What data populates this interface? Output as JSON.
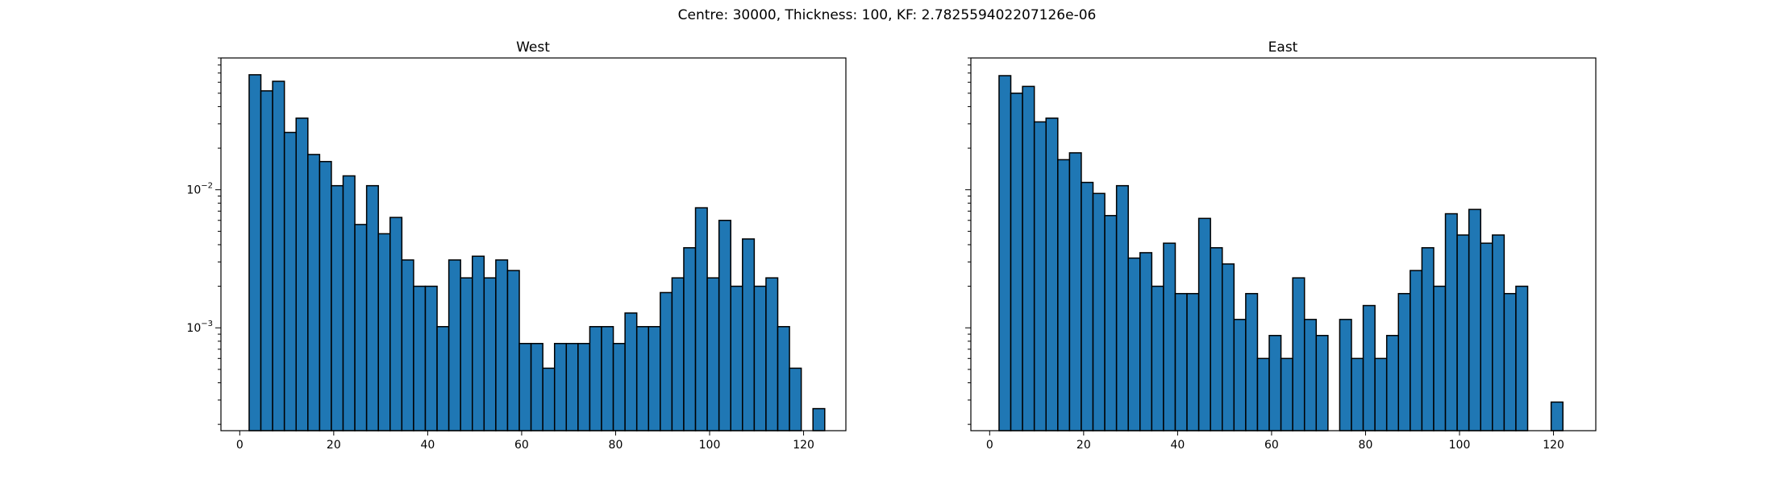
{
  "figure": {
    "suptitle": "Centre: 30000, Thickness: 100, KF: 2.782559402207126e-06"
  },
  "chart_data": [
    {
      "type": "bar",
      "title": "West",
      "xlabel": "",
      "ylabel": "",
      "yscale": "log",
      "xlim": [
        -4,
        129
      ],
      "ylim": [
        0.00018,
        0.09
      ],
      "x_ticks": [
        0,
        20,
        40,
        60,
        80,
        100,
        120
      ],
      "y_major_ticks": [
        {
          "value": 0.01,
          "label": "10−2"
        },
        {
          "value": 0.001,
          "label": "10−3"
        }
      ],
      "bin_start": 2,
      "bin_width": 2.5,
      "color": "#1f77b4",
      "edge_color": "#000000",
      "values": [
        0.068,
        0.052,
        0.061,
        0.026,
        0.033,
        0.018,
        0.016,
        0.0107,
        0.0126,
        0.0056,
        0.0107,
        0.0048,
        0.0063,
        0.0031,
        0.002,
        0.002,
        0.00102,
        0.0031,
        0.0023,
        0.0033,
        0.0023,
        0.0031,
        0.0026,
        0.00077,
        0.00077,
        0.00051,
        0.00077,
        0.00077,
        0.00077,
        0.00102,
        0.00102,
        0.00077,
        0.00128,
        0.00102,
        0.00102,
        0.0018,
        0.0023,
        0.0038,
        0.0074,
        0.0023,
        0.006,
        0.002,
        0.0044,
        0.002,
        0.0023,
        0.00102,
        0.00051,
        0,
        0.00026
      ]
    },
    {
      "type": "bar",
      "title": "East",
      "xlabel": "",
      "ylabel": "",
      "yscale": "log",
      "xlim": [
        -4,
        129
      ],
      "ylim": [
        0.00018,
        0.09
      ],
      "x_ticks": [
        0,
        20,
        40,
        60,
        80,
        100,
        120
      ],
      "y_major_ticks": [
        {
          "value": 0.01,
          "label": ""
        },
        {
          "value": 0.001,
          "label": ""
        }
      ],
      "bin_start": 2,
      "bin_width": 2.5,
      "color": "#1f77b4",
      "edge_color": "#000000",
      "values": [
        0.067,
        0.05,
        0.056,
        0.031,
        0.033,
        0.0165,
        0.0185,
        0.0113,
        0.0094,
        0.0065,
        0.0107,
        0.0032,
        0.0035,
        0.002,
        0.0041,
        0.00177,
        0.00177,
        0.0062,
        0.0038,
        0.0029,
        0.00115,
        0.00177,
        0.0006,
        0.00088,
        0.0006,
        0.0023,
        0.00115,
        0.00088,
        0,
        0.00115,
        0.0006,
        0.00145,
        0.0006,
        0.00088,
        0.00177,
        0.0026,
        0.0038,
        0.002,
        0.0067,
        0.0047,
        0.0072,
        0.0041,
        0.0047,
        0.00177,
        0.002,
        0,
        0,
        0.00029
      ]
    }
  ]
}
